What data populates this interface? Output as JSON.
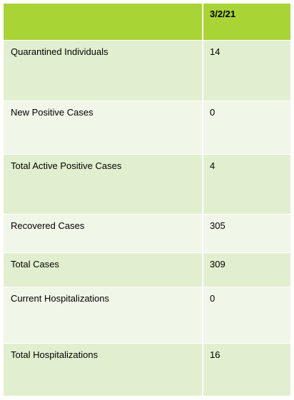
{
  "table": {
    "header": {
      "label": "",
      "date": "3/2/21"
    },
    "rows": [
      {
        "label": "Quarantined Individuals",
        "value": "14"
      },
      {
        "label": "New Positive Cases",
        "value": "0"
      },
      {
        "label": "Total Active Positive Cases",
        "value": "4"
      },
      {
        "label": "Recovered Cases",
        "value": "305"
      },
      {
        "label": "Total Cases",
        "value": "309"
      },
      {
        "label": "Current Hospitalizations",
        "value": "0"
      },
      {
        "label": "Total Hospitalizations",
        "value": "16"
      }
    ],
    "colors": {
      "header": "#a9d435",
      "band_dark": "#e2efcf",
      "band_light": "#f0f6e8"
    }
  }
}
